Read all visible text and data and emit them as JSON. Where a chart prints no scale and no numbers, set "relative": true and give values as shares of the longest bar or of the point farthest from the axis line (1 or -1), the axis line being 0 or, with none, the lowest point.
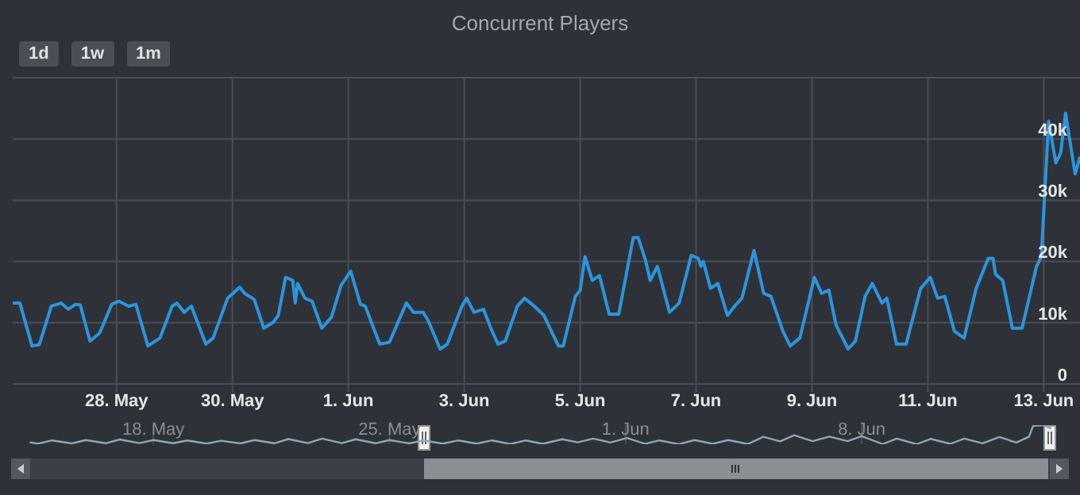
{
  "chart_data": [
    {
      "type": "line",
      "title": "Concurrent Players",
      "annotations": [
        "1d",
        "1w",
        "1m"
      ],
      "color": "#2b95de",
      "grid": true,
      "xlim": [
        "--05-26T05:00",
        "--06-13T15:00"
      ],
      "xticks": [
        {
          "value": "--05-28",
          "label": "28. May"
        },
        {
          "value": "--05-30",
          "label": "30. May"
        },
        {
          "value": "--06-01",
          "label": "1. Jun"
        },
        {
          "value": "--06-03",
          "label": "3. Jun"
        },
        {
          "value": "--06-05",
          "label": "5. Jun"
        },
        {
          "value": "--06-07",
          "label": "7. Jun"
        },
        {
          "value": "--06-09",
          "label": "9. Jun"
        },
        {
          "value": "--06-11",
          "label": "11. Jun"
        },
        {
          "value": "--06-13",
          "label": "13. Jun"
        }
      ],
      "ylim": [
        0,
        50000
      ],
      "yticks": [
        {
          "value": 0,
          "label": "0"
        },
        {
          "value": 10000,
          "label": "10k"
        },
        {
          "value": 20000,
          "label": "20k"
        },
        {
          "value": 30000,
          "label": "30k"
        },
        {
          "value": 40000,
          "label": "40k"
        },
        {
          "value": 50000,
          "label": null
        }
      ],
      "x": [
        "--05-26T05:00",
        "--05-26T08:00",
        "--05-26T13:00",
        "--05-26T16:00",
        "--05-26T21:00",
        "--05-27T01:00",
        "--05-27T04:00",
        "--05-27T07:00",
        "--05-27T09:00",
        "--05-27T13:00",
        "--05-27T17:00",
        "--05-27T22:00",
        "--05-28T01:00",
        "--05-28T05:00",
        "--05-28T08:00",
        "--05-28T13:00",
        "--05-28T18:00",
        "--05-28T23:00",
        "--05-29T01:00",
        "--05-29T04:00",
        "--05-29T07:00",
        "--05-29T13:00",
        "--05-29T16:00",
        "--05-29T22:00",
        "--05-30T03:00",
        "--05-30T05:00",
        "--05-30T09:00",
        "--05-30T13:00",
        "--05-30T17:00",
        "--05-30T19:00",
        "--05-30T22:00",
        "--05-31T01:00",
        "--05-31T02:00",
        "--05-31T03:00",
        "--05-31T06:00",
        "--05-31T09:00",
        "--05-31T13:00",
        "--05-31T17:00",
        "--05-31T21:00",
        "--06-01T01:00",
        "--06-01T05:00",
        "--06-01T07:00",
        "--06-01T13:00",
        "--06-01T17:00",
        "--06-02T00:00",
        "--06-02T03:00",
        "--06-02T07:00",
        "--06-02T09:00",
        "--06-02T14:00",
        "--06-02T17:00",
        "--06-02T23:00",
        "--06-03T01:00",
        "--06-03T04:00",
        "--06-03T08:00",
        "--06-03T11:00",
        "--06-03T14:00",
        "--06-03T17:00",
        "--06-03T22:00",
        "--06-04T01:00",
        "--06-04T05:00",
        "--06-04T09:00",
        "--06-04T15:00",
        "--06-04T17:00",
        "--06-04T22:00",
        "--06-05T00:00",
        "--06-05T02:00",
        "--06-05T05:00",
        "--06-05T08:00",
        "--06-05T12:00",
        "--06-05T16:00",
        "--06-05T22:00",
        "--06-06T00:00",
        "--06-06T03:00",
        "--06-06T05:00",
        "--06-06T08:00",
        "--06-06T13:00",
        "--06-06T17:00",
        "--06-06T22:00",
        "--06-07T01:00",
        "--06-07T02:00",
        "--06-07T03:00",
        "--06-07T06:00",
        "--06-07T09:00",
        "--06-07T13:00",
        "--06-07T16:00",
        "--06-07T19:00",
        "--06-08T00:00",
        "--06-08T04:00",
        "--06-08T07:00",
        "--06-08T12:00",
        "--06-08T15:00",
        "--06-08T19:00",
        "--06-09T01:00",
        "--06-09T04:00",
        "--06-09T07:00",
        "--06-09T10:00",
        "--06-09T15:00",
        "--06-09T18:00",
        "--06-09T22:00",
        "--06-10T01:00",
        "--06-10T05:00",
        "--06-10T07:00",
        "--06-10T11:00",
        "--06-10T15:00",
        "--06-10T21:00",
        "--06-11T01:00",
        "--06-11T04:00",
        "--06-11T07:00",
        "--06-11T11:00",
        "--06-11T15:00",
        "--06-11T20:00",
        "--06-12T01:00",
        "--06-12T03:00",
        "--06-12T04:00",
        "--06-12T07:00",
        "--06-12T11:00",
        "--06-12T15:00",
        "--06-12T21:00",
        "--06-12T23:00",
        "--06-13T02:00",
        "--06-13T05:00",
        "--06-13T07:00",
        "--06-13T09:00",
        "--06-13T13:00",
        "--06-13T15:00"
      ],
      "values": [
        13200,
        13200,
        6200,
        6400,
        12700,
        13200,
        12200,
        13000,
        12900,
        7000,
        8300,
        13000,
        13500,
        12700,
        13000,
        6200,
        7500,
        12700,
        13200,
        11700,
        12700,
        6500,
        7500,
        14000,
        15800,
        14800,
        13800,
        9100,
        10100,
        11200,
        17400,
        16900,
        13200,
        16400,
        14000,
        13500,
        9100,
        10900,
        16100,
        18400,
        13000,
        12700,
        6500,
        6800,
        13200,
        11700,
        11700,
        10400,
        5700,
        6500,
        12700,
        14000,
        11700,
        12200,
        9100,
        6500,
        7000,
        12700,
        14000,
        12700,
        11200,
        6200,
        6200,
        14300,
        15300,
        20800,
        16900,
        17700,
        11400,
        11400,
        23900,
        23900,
        20300,
        16900,
        19200,
        11700,
        13200,
        21000,
        20500,
        19200,
        20000,
        15600,
        16400,
        11200,
        12700,
        14000,
        21800,
        14800,
        14300,
        8600,
        6200,
        7500,
        17400,
        14800,
        15300,
        9600,
        5700,
        7000,
        14300,
        16400,
        13200,
        14000,
        6500,
        6500,
        15600,
        17400,
        14000,
        14300,
        8600,
        7500,
        15600,
        20500,
        20500,
        17900,
        16900,
        9100,
        9100,
        19200,
        20800,
        42900,
        36100,
        37700,
        44200,
        34300,
        37100
      ]
    },
    {
      "type": "line",
      "relative": true,
      "color": "#8fa6bd",
      "grid": "x",
      "tick_labels": "x",
      "xlim": [
        "--05-13T21:00",
        "--06-13T15:00"
      ],
      "xticks": [
        {
          "value": "--05-18",
          "label": "18. May"
        },
        {
          "value": "--05-25",
          "label": "25. May"
        },
        {
          "value": "--06-01",
          "label": "1. Jun"
        },
        {
          "value": "--06-08",
          "label": "8. Jun"
        }
      ],
      "x": [
        "--05-14T08:00",
        "--05-14T14:00",
        "--05-15T00:00",
        "--05-15T14:00",
        "--05-16T00:00",
        "--05-16T14:00",
        "--05-17T00:00",
        "--05-17T14:00",
        "--05-18T00:00",
        "--05-18T14:00",
        "--05-19T00:00",
        "--05-19T14:00",
        "--05-20T00:00",
        "--05-20T14:00",
        "--05-21T00:00",
        "--05-21T14:00",
        "--05-22T00:00",
        "--05-22T14:00",
        "--05-23T00:00",
        "--05-23T14:00",
        "--05-24T00:00",
        "--05-24T14:00",
        "--05-25T00:00",
        "--05-25T14:00",
        "--05-26T00:00",
        "--05-26T14:00",
        "--05-27T01:00",
        "--05-27T14:00",
        "--05-28T01:00",
        "--05-28T14:00",
        "--05-29T01:00",
        "--05-29T13:00",
        "--05-30T03:00",
        "--05-30T14:00",
        "--05-31T01:00",
        "--05-31T13:00",
        "--06-01T01:00",
        "--06-01T14:00",
        "--06-02T00:00",
        "--06-02T14:00",
        "--06-03T01:00",
        "--06-03T14:00",
        "--06-04T01:00",
        "--06-04T15:00",
        "--06-05T02:00",
        "--06-05T14:00",
        "--06-06T00:00",
        "--06-06T13:00",
        "--06-07T01:00",
        "--06-07T14:00",
        "--06-08T00:00",
        "--06-08T15:00",
        "--06-09T01:00",
        "--06-09T15:00",
        "--06-10T01:00",
        "--06-10T15:00",
        "--06-11T01:00",
        "--06-11T14:00",
        "--06-12T02:00",
        "--06-12T14:00",
        "--06-12T23:00",
        "--06-13T02:00",
        "--06-13T09:00",
        "--06-13T15:00"
      ],
      "values": [
        0.1,
        0.03,
        0.2,
        0.04,
        0.22,
        0.05,
        0.25,
        0.06,
        0.22,
        0.05,
        0.2,
        0.03,
        0.18,
        0.04,
        0.22,
        0.05,
        0.27,
        0.06,
        0.3,
        0.06,
        0.26,
        0.05,
        0.22,
        0.04,
        0.2,
        0.03,
        0.2,
        0.03,
        0.2,
        0.01,
        0.2,
        0.02,
        0.26,
        0.1,
        0.3,
        0.09,
        0.33,
        0.02,
        0.2,
        0,
        0.22,
        0.02,
        0.22,
        0.01,
        0.39,
        0.15,
        0.47,
        0.16,
        0.4,
        0.16,
        0.42,
        0.01,
        0.3,
        0,
        0.28,
        0.02,
        0.3,
        0.05,
        0.38,
        0.09,
        0.39,
        0.97,
        1,
        0.82
      ]
    }
  ]
}
